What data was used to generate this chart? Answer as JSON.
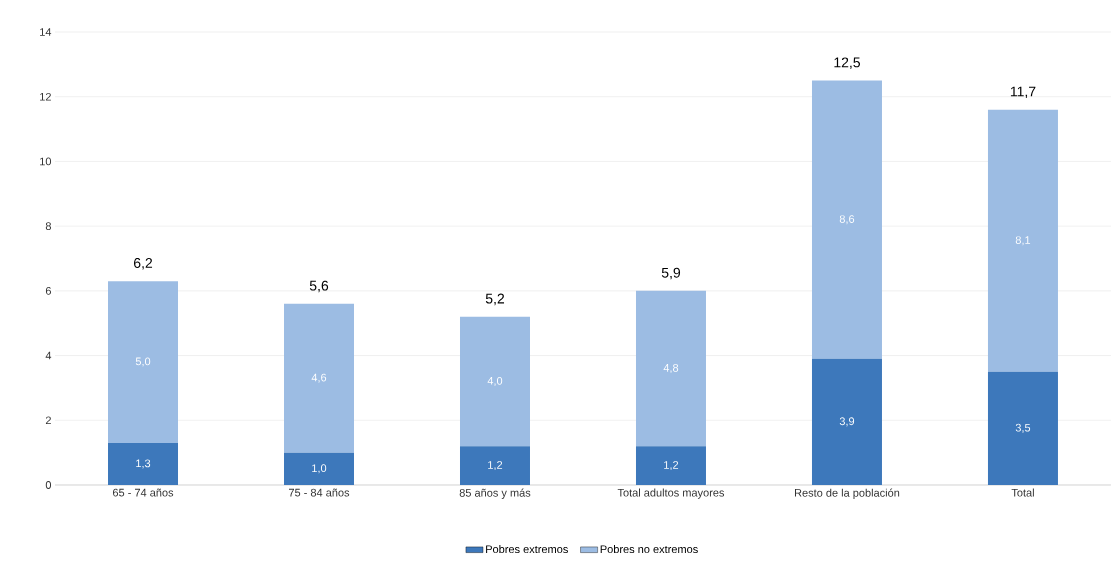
{
  "chart_data": {
    "type": "bar",
    "stacked": true,
    "categories": [
      "65 - 74 años",
      "75 - 84 años",
      "85 años y más",
      "Total adultos mayores",
      "Resto de la población",
      "Total"
    ],
    "series": [
      {
        "name": "Pobres extremos",
        "color": "#3d78bb",
        "values": [
          1.3,
          1.0,
          1.2,
          1.2,
          3.9,
          3.5
        ],
        "value_labels": [
          "1,3",
          "1,0",
          "1,2",
          "1,2",
          "3,9",
          "3,5"
        ]
      },
      {
        "name": "Pobres no extremos",
        "color": "#9cbce3",
        "values": [
          5.0,
          4.6,
          4.0,
          4.8,
          8.6,
          8.1
        ],
        "value_labels": [
          "5,0",
          "4,6",
          "4,0",
          "4,8",
          "8,6",
          "8,1"
        ]
      }
    ],
    "totals": [
      "6,2",
      "5,6",
      "5,2",
      "5,9",
      "12,5",
      "11,7"
    ],
    "ylim": [
      0,
      14
    ],
    "yticks": [
      0,
      2,
      4,
      6,
      8,
      10,
      12,
      14
    ],
    "grid": "y",
    "legend": "bottom"
  }
}
